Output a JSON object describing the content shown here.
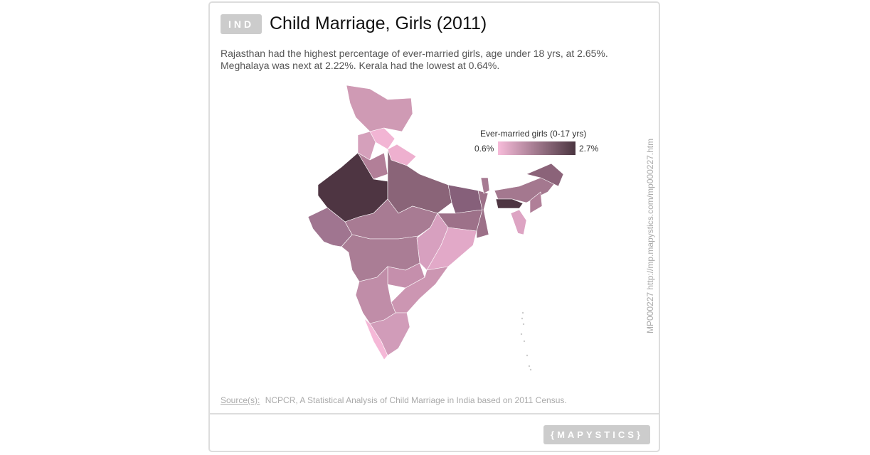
{
  "header": {
    "country_code": "IND",
    "title": "Child Marriage, Girls (2011)",
    "description": "Rajasthan had the highest percentage of ever-married girls, age under 18 yrs, at 2.65%. Meghalaya was next at 2.22%. Kerala had the lowest at 0.64%."
  },
  "legend": {
    "title": "Ever-married girls (0-17 yrs)",
    "min_label": "0.6%",
    "max_label": "2.7%",
    "color_low": "#f7bcda",
    "color_high": "#4a3540"
  },
  "map": {
    "regions": {
      "jammu-kashmir": "#cf9ab4",
      "himachal-pradesh": "#f2b5d4",
      "uttarakhand": "#eeb0cf",
      "punjab": "#d5a0bb",
      "haryana": "#b27f98",
      "rajasthan": "#4e3542",
      "uttar-pradesh": "#8a6478",
      "bihar": "#86607a",
      "jharkhand": "#9d7189",
      "west-bengal": "#9c7088",
      "gujarat": "#a07590",
      "madhya-pradesh": "#a87b93",
      "chhattisgarh": "#d7a0bf",
      "odisha": "#e2a9c8",
      "maharashtra": "#aa7d95",
      "telangana": "#c58fac",
      "andhra-pradesh": "#cc96b2",
      "karnataka": "#c08da8",
      "kerala": "#f5b8d7",
      "tamil-nadu": "#d19cb9",
      "assam": "#a4788f",
      "arunachal-pradesh": "#8b6379",
      "meghalaya": "#4e3542",
      "tripura-mizoram": "#dda4c3",
      "nagaland-manipur": "#b07f98",
      "sikkim": "#a77a92",
      "islands": "#cccccc"
    }
  },
  "side_url": "MP000227 http://mp.mapystics.com/mp000227.htm",
  "footer": {
    "source_label": "Source(s):",
    "source_text": "NCPCR, A Statistical Analysis of Child Marriage in India based on 2011 Census.",
    "logo": "{MAPYSTICS}"
  }
}
